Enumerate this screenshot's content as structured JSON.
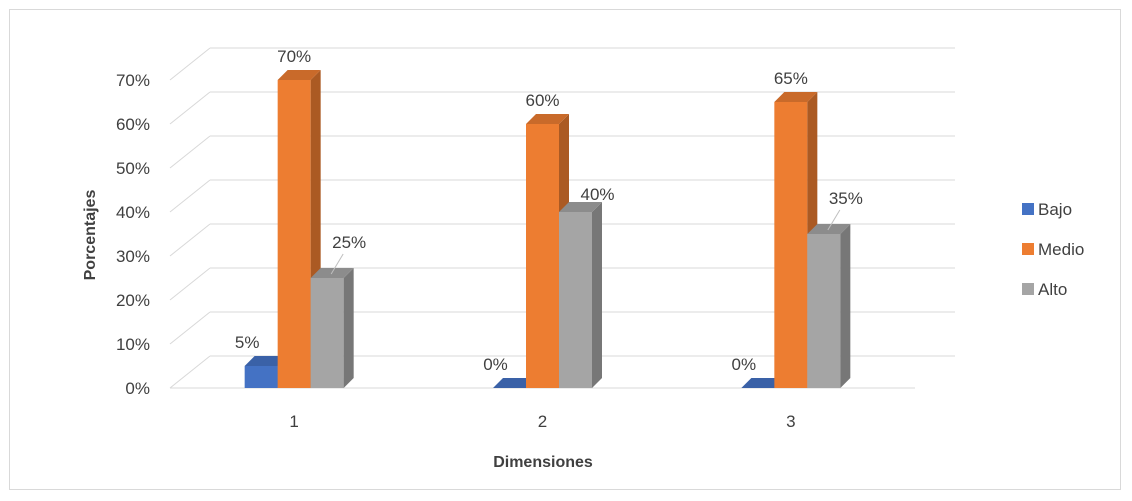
{
  "chart_data": {
    "type": "bar",
    "style": "3d-clustered-column",
    "categories": [
      "1",
      "2",
      "3"
    ],
    "series": [
      {
        "name": "Bajo",
        "values": [
          5,
          0,
          0
        ],
        "labels": [
          "5%",
          "0%",
          "0%"
        ],
        "color": "#4472c4"
      },
      {
        "name": "Medio",
        "values": [
          70,
          60,
          65
        ],
        "labels": [
          "70%",
          "60%",
          "65%"
        ],
        "color": "#ed7d31"
      },
      {
        "name": "Alto",
        "values": [
          25,
          40,
          35
        ],
        "labels": [
          "25%",
          "40%",
          "35%"
        ],
        "color": "#a5a5a5"
      }
    ],
    "yticks": [
      "0%",
      "10%",
      "20%",
      "30%",
      "40%",
      "50%",
      "60%",
      "70%"
    ],
    "ylim": [
      0,
      70
    ],
    "xlabel": "Dimensiones",
    "ylabel": "Porcentajes",
    "grid": true,
    "legend_position": "right"
  }
}
